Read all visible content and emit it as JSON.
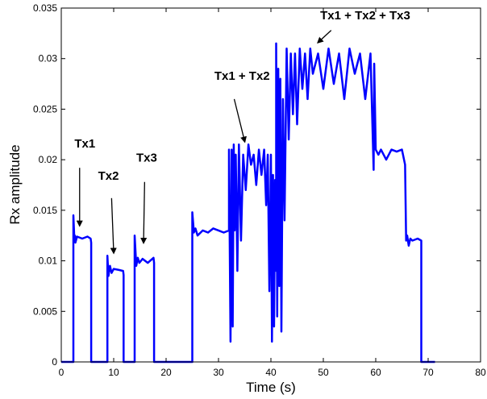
{
  "chart_data": {
    "type": "line",
    "title": "",
    "xlabel": "Time (s)",
    "ylabel": "Rx amplitude",
    "xlim": [
      0,
      80
    ],
    "ylim": [
      0,
      0.035
    ],
    "xticks": [
      "0",
      "10",
      "20",
      "30",
      "40",
      "50",
      "60",
      "70",
      "80"
    ],
    "yticks": [
      "0",
      "0.005",
      "0.01",
      "0.015",
      "0.02",
      "0.025",
      "0.03",
      "0.035"
    ],
    "grid": false,
    "line_color": "#0000ff",
    "series": [
      {
        "x": [
          0,
          2.3,
          2.3,
          2.5,
          2.6,
          2.7,
          3,
          4,
          5,
          5.6,
          5.7,
          5.7,
          8.8,
          8.8,
          9,
          9.3,
          9.6,
          10,
          11,
          11.8,
          11.9,
          11.9,
          14,
          14,
          14.3,
          14.6,
          14.9,
          15.5,
          16.5,
          17.6,
          17.7,
          17.7,
          25,
          25,
          25.3,
          25.6,
          26,
          27,
          28,
          29,
          30,
          31,
          32,
          32,
          32.3,
          32.5,
          32.7,
          32.9,
          33.1,
          33.3,
          33.6,
          33.9,
          34.3,
          34.7,
          35.2,
          35.7,
          36.2,
          36.7,
          37.2,
          37.7,
          38.2,
          38.7,
          39.1,
          39.4,
          39.7,
          40,
          40.2,
          40.4,
          40.6,
          40.8,
          41,
          41,
          41.2,
          41.4,
          41.6,
          41.8,
          42,
          42.3,
          42.6,
          43,
          43.4,
          43.8,
          44.2,
          44.6,
          45,
          45.5,
          46,
          46.5,
          47,
          47.5,
          48,
          49,
          50,
          51,
          52,
          53,
          54,
          55,
          56,
          57,
          58,
          59,
          59.6,
          59.7,
          60,
          60.5,
          61,
          62,
          63,
          64,
          65,
          65.6,
          65.8,
          66,
          66.3,
          66.6,
          67,
          68,
          68.7,
          68.7,
          69,
          71,
          71.3
        ],
        "values": [
          0,
          0,
          0.0145,
          0.012,
          0.0125,
          0.0118,
          0.0124,
          0.0122,
          0.0124,
          0.0122,
          0.0118,
          0,
          0,
          0.0105,
          0.0085,
          0.0095,
          0.0088,
          0.0092,
          0.0091,
          0.009,
          0.0086,
          0,
          0,
          0.0125,
          0.0095,
          0.0103,
          0.0098,
          0.0102,
          0.0098,
          0.0103,
          0.0098,
          0,
          0,
          0.0148,
          0.0128,
          0.0132,
          0.0125,
          0.013,
          0.0128,
          0.0132,
          0.013,
          0.0128,
          0.013,
          0.021,
          0.002,
          0.021,
          0.0035,
          0.0215,
          0.013,
          0.0205,
          0.009,
          0.0215,
          0.012,
          0.0205,
          0.017,
          0.0215,
          0.0195,
          0.0205,
          0.0175,
          0.021,
          0.0185,
          0.021,
          0.0155,
          0.0205,
          0.007,
          0.0205,
          0.002,
          0.0185,
          0.0035,
          0.018,
          0.009,
          0.0315,
          0.0045,
          0.029,
          0.0075,
          0.028,
          0.003,
          0.026,
          0.014,
          0.031,
          0.022,
          0.0305,
          0.0245,
          0.0305,
          0.0235,
          0.031,
          0.027,
          0.0305,
          0.026,
          0.031,
          0.0285,
          0.0305,
          0.027,
          0.031,
          0.0275,
          0.0305,
          0.026,
          0.031,
          0.0285,
          0.0305,
          0.026,
          0.0305,
          0.019,
          0.0295,
          0.021,
          0.0205,
          0.021,
          0.02,
          0.021,
          0.0208,
          0.021,
          0.0195,
          0.012,
          0.0125,
          0.0115,
          0.0122,
          0.012,
          0.0122,
          0.012,
          0,
          0,
          0,
          0
        ]
      }
    ],
    "annotations": [
      {
        "text": "Tx1",
        "text_at": [
          4.5,
          0.0212
        ],
        "arrow_from": [
          3.5,
          0.0192
        ],
        "arrow_to": [
          3.5,
          0.0135
        ]
      },
      {
        "text": "Tx2",
        "text_at": [
          9.0,
          0.018
        ],
        "arrow_from": [
          9.6,
          0.0162
        ],
        "arrow_to": [
          10.0,
          0.0108
        ]
      },
      {
        "text": "Tx3",
        "text_at": [
          16.3,
          0.0198
        ],
        "arrow_from": [
          15.9,
          0.0178
        ],
        "arrow_to": [
          15.7,
          0.0118
        ]
      },
      {
        "text": "Tx1 + Tx2",
        "text_at": [
          34.5,
          0.0279
        ],
        "arrow_from": [
          33.0,
          0.026
        ],
        "arrow_to": [
          35.0,
          0.0218
        ]
      },
      {
        "text": "Tx1 + Tx2 + Tx3",
        "text_at": [
          58.0,
          0.0339
        ],
        "arrow_from": [
          51.5,
          0.0328
        ],
        "arrow_to": [
          49.0,
          0.0316
        ]
      }
    ]
  }
}
